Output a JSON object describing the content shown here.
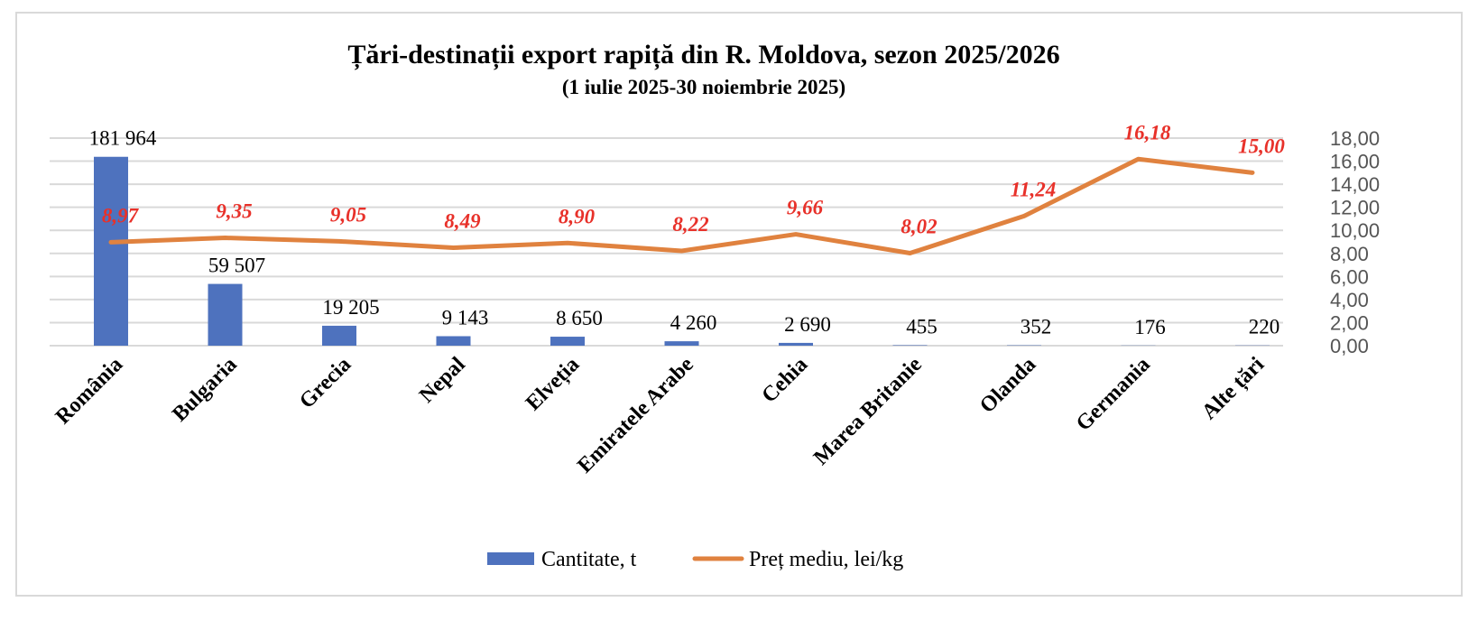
{
  "chart_data": {
    "type": "bar+line",
    "title": "Țări-destinații export rapiță din R. Moldova, sezon 2025/2026",
    "subtitle": "(1 iulie 2025-30 noiembrie 2025)",
    "categories": [
      "România",
      "Bulgaria",
      "Grecia",
      "Nepal",
      "Elveția",
      "Emiratele Arabe",
      "Cehia",
      "Marea Britanie",
      "Olanda",
      "Germania",
      "Alte țări"
    ],
    "series": [
      {
        "name": "Cantitate, t",
        "type": "bar",
        "axis": "left",
        "color": "#4e72be",
        "values": [
          181964,
          59507,
          19205,
          9143,
          8650,
          4260,
          2690,
          455,
          352,
          176,
          220
        ],
        "labels": [
          "181 964",
          "59 507",
          "19 205",
          "9 143",
          "8 650",
          "4 260",
          "2 690",
          "455",
          "352",
          "176",
          "220"
        ]
      },
      {
        "name": "Preț mediu, lei/kg",
        "type": "line",
        "axis": "right",
        "color": "#e0823f",
        "label_color": "#e8312a",
        "values": [
          8.97,
          9.35,
          9.05,
          8.49,
          8.9,
          8.22,
          9.66,
          8.02,
          11.24,
          16.18,
          15.0
        ],
        "labels": [
          "8,97",
          "9,35",
          "9,05",
          "8,49",
          "8,90",
          "8,22",
          "9,66",
          "8,02",
          "11,24",
          "16,18",
          "15,00"
        ]
      }
    ],
    "y_left": {
      "range": [
        0,
        200000
      ],
      "visible": false
    },
    "y_right": {
      "range": [
        0,
        18
      ],
      "ticks": [
        "0,00",
        "2,00",
        "4,00",
        "6,00",
        "8,00",
        "10,00",
        "12,00",
        "14,00",
        "16,00",
        "18,00"
      ]
    },
    "grid": true,
    "legend": "bottom"
  }
}
